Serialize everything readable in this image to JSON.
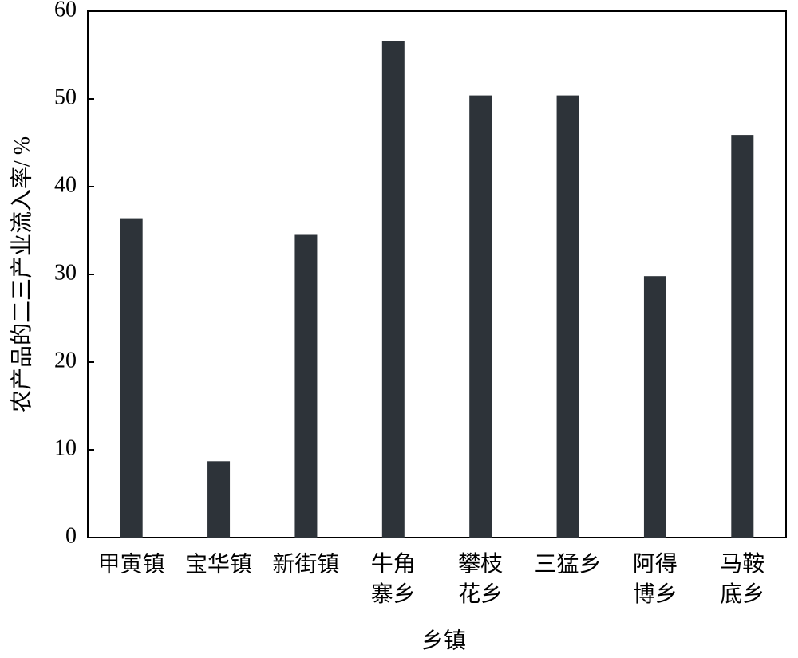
{
  "chart_data": {
    "type": "bar",
    "x_label": "乡镇",
    "y_label": "农产品的二三产业流入率/ %",
    "categories": [
      "甲寅镇",
      "宝华镇",
      "新街镇",
      "牛角寨乡",
      "攀枝花乡",
      "三猛乡",
      "阿得博乡",
      "马鞍底乡"
    ],
    "values": [
      36.4,
      8.7,
      34.5,
      56.6,
      50.4,
      50.4,
      29.8,
      45.9
    ],
    "color": "#2d3339",
    "ylim": [
      0,
      60
    ],
    "yticks": [
      0,
      10,
      20,
      30,
      40,
      50,
      60
    ],
    "grid": false
  }
}
